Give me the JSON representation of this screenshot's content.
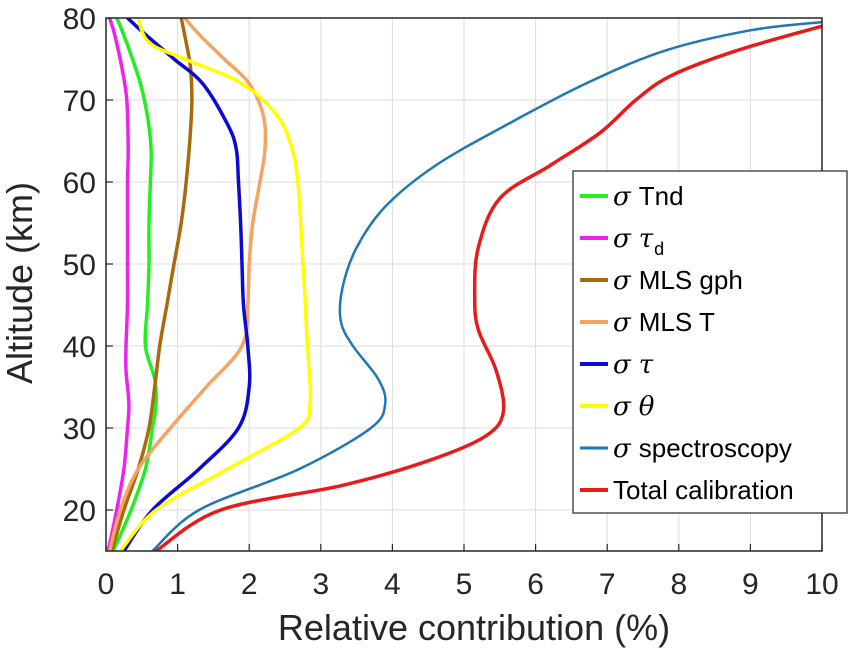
{
  "chart_data": {
    "type": "line",
    "xlabel": "Relative contribution (%)",
    "ylabel": "Altitude (km)",
    "xlim": [
      0,
      10
    ],
    "ylim": [
      15,
      80
    ],
    "xticks": [
      "0",
      "1",
      "2",
      "3",
      "4",
      "5",
      "6",
      "7",
      "8",
      "9",
      "10"
    ],
    "yticks": [
      "20",
      "30",
      "40",
      "50",
      "60",
      "70",
      "80"
    ],
    "grid": true,
    "legend_location": "right, lower half",
    "series": [
      {
        "name": "σ Tnd",
        "legend": {
          "sigma": "σ",
          "text": "Tnd"
        },
        "color": "#22ee22",
        "width": 3.5,
        "points": [
          [
            0.1,
            15
          ],
          [
            0.35,
            20
          ],
          [
            0.55,
            25
          ],
          [
            0.65,
            30
          ],
          [
            0.7,
            33
          ],
          [
            0.68,
            36
          ],
          [
            0.55,
            40
          ],
          [
            0.58,
            45
          ],
          [
            0.6,
            50
          ],
          [
            0.6,
            55
          ],
          [
            0.62,
            60
          ],
          [
            0.63,
            64
          ],
          [
            0.58,
            68
          ],
          [
            0.48,
            72
          ],
          [
            0.33,
            76
          ],
          [
            0.2,
            79
          ],
          [
            0.15,
            80
          ]
        ]
      },
      {
        "name": "σ τd",
        "legend": {
          "sigma": "σ",
          "greek": "τ",
          "sub": "d"
        },
        "color": "#ee22ee",
        "width": 3.5,
        "points": [
          [
            0.03,
            15
          ],
          [
            0.15,
            20
          ],
          [
            0.25,
            25
          ],
          [
            0.3,
            30
          ],
          [
            0.32,
            33
          ],
          [
            0.28,
            37
          ],
          [
            0.28,
            40
          ],
          [
            0.3,
            45
          ],
          [
            0.3,
            50
          ],
          [
            0.3,
            55
          ],
          [
            0.3,
            60
          ],
          [
            0.31,
            64
          ],
          [
            0.29,
            70
          ],
          [
            0.22,
            74
          ],
          [
            0.12,
            78
          ],
          [
            0.05,
            80
          ]
        ]
      },
      {
        "name": "σ MLS gph",
        "legend": {
          "sigma": "σ",
          "text": "MLS gph"
        },
        "color": "#a86a0a",
        "width": 3.5,
        "points": [
          [
            0.08,
            15
          ],
          [
            0.25,
            20
          ],
          [
            0.45,
            25
          ],
          [
            0.6,
            30
          ],
          [
            0.68,
            35
          ],
          [
            0.75,
            40
          ],
          [
            0.85,
            45
          ],
          [
            0.95,
            50
          ],
          [
            1.05,
            55
          ],
          [
            1.12,
            60
          ],
          [
            1.17,
            65
          ],
          [
            1.2,
            70
          ],
          [
            1.18,
            74
          ],
          [
            1.12,
            77
          ],
          [
            1.05,
            80
          ]
        ]
      },
      {
        "name": "σ MLS T",
        "legend": {
          "sigma": "σ",
          "text": "MLS T"
        },
        "color": "#f4a460",
        "width": 3.5,
        "points": [
          [
            0.05,
            15
          ],
          [
            0.2,
            20
          ],
          [
            0.45,
            25
          ],
          [
            0.9,
            30
          ],
          [
            1.4,
            35
          ],
          [
            1.9,
            40
          ],
          [
            1.98,
            45
          ],
          [
            2.0,
            50
          ],
          [
            2.05,
            55
          ],
          [
            2.15,
            60
          ],
          [
            2.22,
            64
          ],
          [
            2.2,
            68
          ],
          [
            2.0,
            72
          ],
          [
            1.65,
            75
          ],
          [
            1.3,
            78
          ],
          [
            1.1,
            80
          ]
        ]
      },
      {
        "name": "σ τ",
        "legend": {
          "sigma": "σ",
          "greek": "τ"
        },
        "color": "#0a0ad2",
        "width": 3.5,
        "points": [
          [
            0.25,
            15
          ],
          [
            0.65,
            20
          ],
          [
            1.3,
            25
          ],
          [
            1.85,
            30
          ],
          [
            2.0,
            35
          ],
          [
            1.98,
            40
          ],
          [
            1.92,
            45
          ],
          [
            1.9,
            50
          ],
          [
            1.88,
            55
          ],
          [
            1.85,
            60
          ],
          [
            1.82,
            64
          ],
          [
            1.7,
            67
          ],
          [
            1.35,
            72
          ],
          [
            0.95,
            75
          ],
          [
            0.55,
            78
          ],
          [
            0.3,
            80
          ]
        ]
      },
      {
        "name": "σ θ",
        "legend": {
          "sigma": "σ",
          "greek": "θ"
        },
        "color": "#ffff00",
        "width": 3.5,
        "points": [
          [
            0.2,
            15
          ],
          [
            0.7,
            20
          ],
          [
            1.7,
            25
          ],
          [
            2.7,
            30
          ],
          [
            2.85,
            33
          ],
          [
            2.83,
            38
          ],
          [
            2.8,
            42
          ],
          [
            2.78,
            46
          ],
          [
            2.75,
            50
          ],
          [
            2.72,
            55
          ],
          [
            2.68,
            60
          ],
          [
            2.6,
            64
          ],
          [
            2.4,
            68
          ],
          [
            1.9,
            72
          ],
          [
            1.1,
            75
          ],
          [
            0.6,
            77
          ],
          [
            0.45,
            80
          ]
        ]
      },
      {
        "name": "σ spectroscopy",
        "legend": {
          "sigma": "σ",
          "text": "spectroscopy"
        },
        "color": "#1f77b4",
        "width": 2.5,
        "points": [
          [
            0.65,
            15
          ],
          [
            1.3,
            20
          ],
          [
            2.7,
            25
          ],
          [
            3.7,
            30
          ],
          [
            3.9,
            33
          ],
          [
            3.8,
            36
          ],
          [
            3.45,
            40
          ],
          [
            3.28,
            43
          ],
          [
            3.3,
            47
          ],
          [
            3.5,
            52
          ],
          [
            3.9,
            57
          ],
          [
            4.6,
            62
          ],
          [
            5.6,
            67
          ],
          [
            6.7,
            72
          ],
          [
            7.8,
            76
          ],
          [
            9.0,
            78.5
          ],
          [
            10.0,
            79.5
          ]
        ]
      },
      {
        "name": "Total calibration",
        "legend": {
          "text": "Total calibration"
        },
        "color": "#e81a1a",
        "width": 3.5,
        "points": [
          [
            0.7,
            15
          ],
          [
            1.6,
            20
          ],
          [
            3.3,
            23
          ],
          [
            4.5,
            26
          ],
          [
            5.3,
            29
          ],
          [
            5.55,
            32
          ],
          [
            5.45,
            37
          ],
          [
            5.2,
            42
          ],
          [
            5.15,
            46
          ],
          [
            5.2,
            52
          ],
          [
            5.5,
            58
          ],
          [
            6.2,
            62
          ],
          [
            6.9,
            66
          ],
          [
            7.4,
            70
          ],
          [
            7.9,
            73
          ],
          [
            8.8,
            76
          ],
          [
            10.0,
            79
          ]
        ]
      }
    ]
  }
}
